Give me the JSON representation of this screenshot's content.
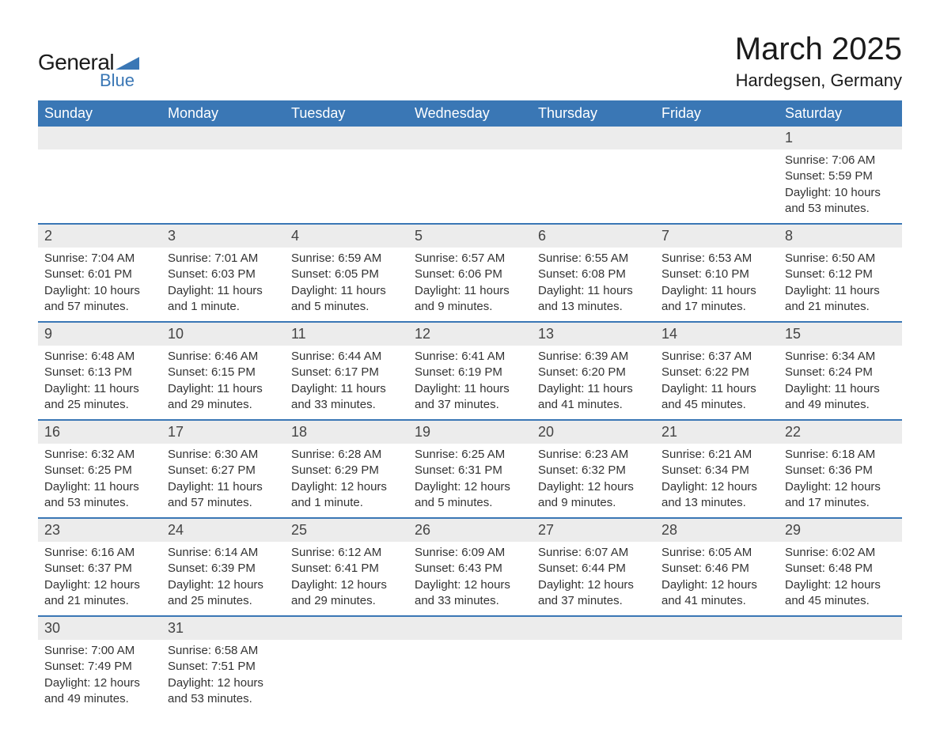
{
  "brand": {
    "name_part1": "General",
    "name_part2": "Blue",
    "accent_color": "#3a77b5"
  },
  "title": "March 2025",
  "location": "Hardegsen, Germany",
  "colors": {
    "header_bg": "#3a77b5",
    "header_text": "#ffffff",
    "daynum_bg": "#ececec",
    "row_divider": "#3a77b5",
    "body_text": "#333333",
    "page_bg": "#ffffff"
  },
  "typography": {
    "title_fontsize": 40,
    "location_fontsize": 22,
    "weekday_fontsize": 18,
    "daynum_fontsize": 18,
    "detail_fontsize": 15
  },
  "weekdays": [
    "Sunday",
    "Monday",
    "Tuesday",
    "Wednesday",
    "Thursday",
    "Friday",
    "Saturday"
  ],
  "weeks": [
    [
      null,
      null,
      null,
      null,
      null,
      null,
      {
        "day": "1",
        "sunrise": "Sunrise: 7:06 AM",
        "sunset": "Sunset: 5:59 PM",
        "daylight1": "Daylight: 10 hours",
        "daylight2": "and 53 minutes."
      }
    ],
    [
      {
        "day": "2",
        "sunrise": "Sunrise: 7:04 AM",
        "sunset": "Sunset: 6:01 PM",
        "daylight1": "Daylight: 10 hours",
        "daylight2": "and 57 minutes."
      },
      {
        "day": "3",
        "sunrise": "Sunrise: 7:01 AM",
        "sunset": "Sunset: 6:03 PM",
        "daylight1": "Daylight: 11 hours",
        "daylight2": "and 1 minute."
      },
      {
        "day": "4",
        "sunrise": "Sunrise: 6:59 AM",
        "sunset": "Sunset: 6:05 PM",
        "daylight1": "Daylight: 11 hours",
        "daylight2": "and 5 minutes."
      },
      {
        "day": "5",
        "sunrise": "Sunrise: 6:57 AM",
        "sunset": "Sunset: 6:06 PM",
        "daylight1": "Daylight: 11 hours",
        "daylight2": "and 9 minutes."
      },
      {
        "day": "6",
        "sunrise": "Sunrise: 6:55 AM",
        "sunset": "Sunset: 6:08 PM",
        "daylight1": "Daylight: 11 hours",
        "daylight2": "and 13 minutes."
      },
      {
        "day": "7",
        "sunrise": "Sunrise: 6:53 AM",
        "sunset": "Sunset: 6:10 PM",
        "daylight1": "Daylight: 11 hours",
        "daylight2": "and 17 minutes."
      },
      {
        "day": "8",
        "sunrise": "Sunrise: 6:50 AM",
        "sunset": "Sunset: 6:12 PM",
        "daylight1": "Daylight: 11 hours",
        "daylight2": "and 21 minutes."
      }
    ],
    [
      {
        "day": "9",
        "sunrise": "Sunrise: 6:48 AM",
        "sunset": "Sunset: 6:13 PM",
        "daylight1": "Daylight: 11 hours",
        "daylight2": "and 25 minutes."
      },
      {
        "day": "10",
        "sunrise": "Sunrise: 6:46 AM",
        "sunset": "Sunset: 6:15 PM",
        "daylight1": "Daylight: 11 hours",
        "daylight2": "and 29 minutes."
      },
      {
        "day": "11",
        "sunrise": "Sunrise: 6:44 AM",
        "sunset": "Sunset: 6:17 PM",
        "daylight1": "Daylight: 11 hours",
        "daylight2": "and 33 minutes."
      },
      {
        "day": "12",
        "sunrise": "Sunrise: 6:41 AM",
        "sunset": "Sunset: 6:19 PM",
        "daylight1": "Daylight: 11 hours",
        "daylight2": "and 37 minutes."
      },
      {
        "day": "13",
        "sunrise": "Sunrise: 6:39 AM",
        "sunset": "Sunset: 6:20 PM",
        "daylight1": "Daylight: 11 hours",
        "daylight2": "and 41 minutes."
      },
      {
        "day": "14",
        "sunrise": "Sunrise: 6:37 AM",
        "sunset": "Sunset: 6:22 PM",
        "daylight1": "Daylight: 11 hours",
        "daylight2": "and 45 minutes."
      },
      {
        "day": "15",
        "sunrise": "Sunrise: 6:34 AM",
        "sunset": "Sunset: 6:24 PM",
        "daylight1": "Daylight: 11 hours",
        "daylight2": "and 49 minutes."
      }
    ],
    [
      {
        "day": "16",
        "sunrise": "Sunrise: 6:32 AM",
        "sunset": "Sunset: 6:25 PM",
        "daylight1": "Daylight: 11 hours",
        "daylight2": "and 53 minutes."
      },
      {
        "day": "17",
        "sunrise": "Sunrise: 6:30 AM",
        "sunset": "Sunset: 6:27 PM",
        "daylight1": "Daylight: 11 hours",
        "daylight2": "and 57 minutes."
      },
      {
        "day": "18",
        "sunrise": "Sunrise: 6:28 AM",
        "sunset": "Sunset: 6:29 PM",
        "daylight1": "Daylight: 12 hours",
        "daylight2": "and 1 minute."
      },
      {
        "day": "19",
        "sunrise": "Sunrise: 6:25 AM",
        "sunset": "Sunset: 6:31 PM",
        "daylight1": "Daylight: 12 hours",
        "daylight2": "and 5 minutes."
      },
      {
        "day": "20",
        "sunrise": "Sunrise: 6:23 AM",
        "sunset": "Sunset: 6:32 PM",
        "daylight1": "Daylight: 12 hours",
        "daylight2": "and 9 minutes."
      },
      {
        "day": "21",
        "sunrise": "Sunrise: 6:21 AM",
        "sunset": "Sunset: 6:34 PM",
        "daylight1": "Daylight: 12 hours",
        "daylight2": "and 13 minutes."
      },
      {
        "day": "22",
        "sunrise": "Sunrise: 6:18 AM",
        "sunset": "Sunset: 6:36 PM",
        "daylight1": "Daylight: 12 hours",
        "daylight2": "and 17 minutes."
      }
    ],
    [
      {
        "day": "23",
        "sunrise": "Sunrise: 6:16 AM",
        "sunset": "Sunset: 6:37 PM",
        "daylight1": "Daylight: 12 hours",
        "daylight2": "and 21 minutes."
      },
      {
        "day": "24",
        "sunrise": "Sunrise: 6:14 AM",
        "sunset": "Sunset: 6:39 PM",
        "daylight1": "Daylight: 12 hours",
        "daylight2": "and 25 minutes."
      },
      {
        "day": "25",
        "sunrise": "Sunrise: 6:12 AM",
        "sunset": "Sunset: 6:41 PM",
        "daylight1": "Daylight: 12 hours",
        "daylight2": "and 29 minutes."
      },
      {
        "day": "26",
        "sunrise": "Sunrise: 6:09 AM",
        "sunset": "Sunset: 6:43 PM",
        "daylight1": "Daylight: 12 hours",
        "daylight2": "and 33 minutes."
      },
      {
        "day": "27",
        "sunrise": "Sunrise: 6:07 AM",
        "sunset": "Sunset: 6:44 PM",
        "daylight1": "Daylight: 12 hours",
        "daylight2": "and 37 minutes."
      },
      {
        "day": "28",
        "sunrise": "Sunrise: 6:05 AM",
        "sunset": "Sunset: 6:46 PM",
        "daylight1": "Daylight: 12 hours",
        "daylight2": "and 41 minutes."
      },
      {
        "day": "29",
        "sunrise": "Sunrise: 6:02 AM",
        "sunset": "Sunset: 6:48 PM",
        "daylight1": "Daylight: 12 hours",
        "daylight2": "and 45 minutes."
      }
    ],
    [
      {
        "day": "30",
        "sunrise": "Sunrise: 7:00 AM",
        "sunset": "Sunset: 7:49 PM",
        "daylight1": "Daylight: 12 hours",
        "daylight2": "and 49 minutes."
      },
      {
        "day": "31",
        "sunrise": "Sunrise: 6:58 AM",
        "sunset": "Sunset: 7:51 PM",
        "daylight1": "Daylight: 12 hours",
        "daylight2": "and 53 minutes."
      },
      null,
      null,
      null,
      null,
      null
    ]
  ]
}
